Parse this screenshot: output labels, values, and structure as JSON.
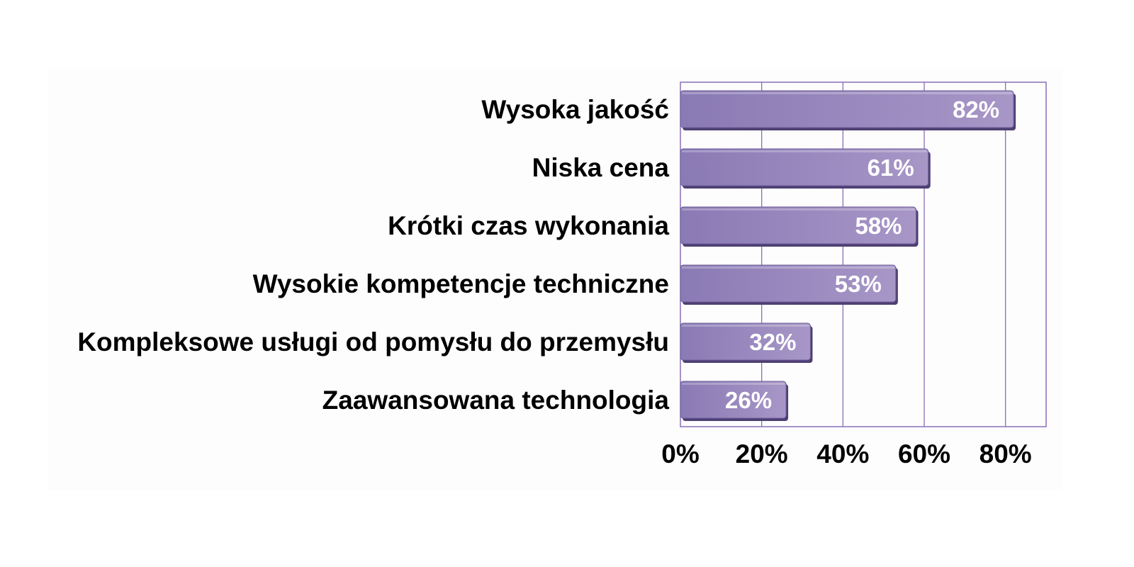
{
  "chart_data": {
    "type": "bar",
    "orientation": "horizontal",
    "categories": [
      "Wysoka jakość",
      "Niska cena",
      "Krótki czas wykonania",
      "Wysokie kompetencje techniczne",
      "Kompleksowe usługi od pomysłu do przemysłu",
      "Zaawansowana technologia"
    ],
    "values": [
      82,
      61,
      58,
      53,
      32,
      26
    ],
    "data_labels": [
      "82%",
      "61%",
      "58%",
      "53%",
      "32%",
      "26%"
    ],
    "x_ticks": [
      0,
      20,
      40,
      60,
      80
    ],
    "x_tick_labels": [
      "0%",
      "20%",
      "40%",
      "60%",
      "80%"
    ],
    "xlim": [
      0,
      90
    ],
    "unit": "%",
    "grid": true,
    "legend": false,
    "colors": {
      "bar_light": "#a796c6",
      "bar_dark": "#8a7ab5",
      "bar_shadow": "#4e3f73",
      "grid": "#8a6fb8",
      "data_label": "#ffffff",
      "text": "#000000"
    }
  }
}
